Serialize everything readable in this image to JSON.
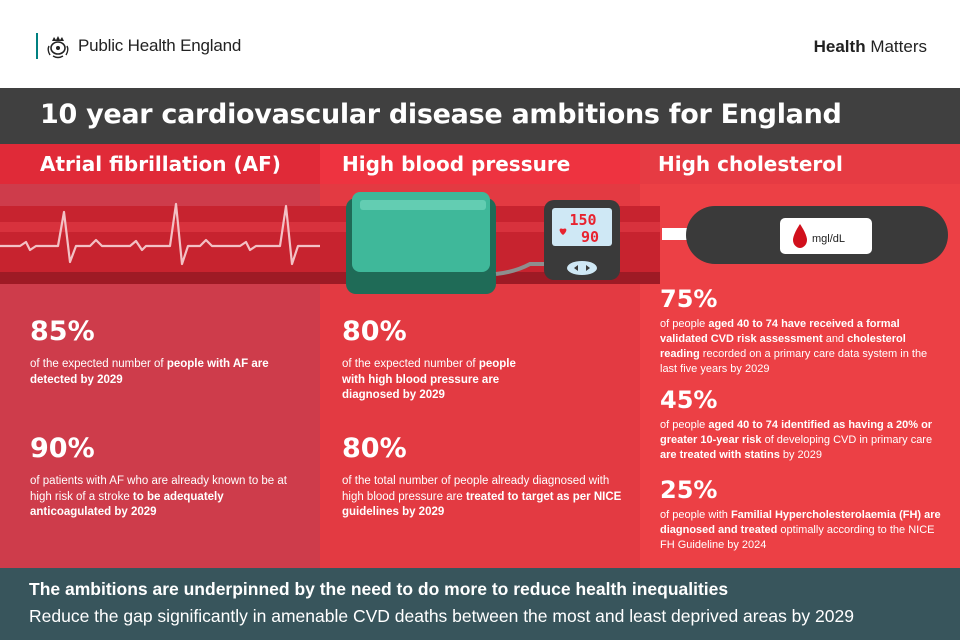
{
  "header": {
    "org": "Public Health England",
    "brand_bold": "Health",
    "brand_rest": " Matters"
  },
  "title": "10 year cardiovascular disease ambitions for England",
  "columns": [
    {
      "heading": "Atrial fibrillation (AF)",
      "stats": [
        {
          "pct": "85%",
          "desc_pre": "of the expected number of ",
          "desc_bold": "people with AF are detected by 2029",
          "desc_post": ""
        },
        {
          "pct": "90%",
          "desc_pre": "of patients with AF who are already known to be at high risk of a stroke ",
          "desc_bold": "to be adequately anticoagulated by 2029",
          "desc_post": ""
        }
      ]
    },
    {
      "heading": "High blood pressure",
      "monitor": {
        "top": "150",
        "bottom": "90"
      },
      "stats": [
        {
          "pct": "80%",
          "desc_pre": "of the expected number of ",
          "desc_bold": "people with high blood pressure are diagnosed by 2029",
          "desc_post": ""
        },
        {
          "pct": "80%",
          "desc_pre": "of the total number of people already diagnosed with high blood pressure are ",
          "desc_bold": "treated to target as per NICE guidelines by 2029",
          "desc_post": ""
        }
      ]
    },
    {
      "heading": "High cholesterol",
      "meter_unit": "mgl/dL",
      "stats": [
        {
          "pct": "75%",
          "desc_pre": "of people ",
          "desc_bold": "aged 40 to 74 have received a formal validated CVD risk assessment",
          "desc_mid": " and ",
          "desc_bold2": "cholesterol reading",
          "desc_post": " recorded on a primary care data system in the last five years by 2029"
        },
        {
          "pct": "45%",
          "desc_pre": "of people ",
          "desc_bold": "aged 40 to 74 identified as having a 20% or greater 10-year risk",
          "desc_mid": " of developing CVD in primary care ",
          "desc_bold2": "are treated with statins",
          "desc_post": " by 2029"
        },
        {
          "pct": "25%",
          "desc_pre": "of people with ",
          "desc_bold": "Familial Hypercholesterolaemia (FH) are diagnosed and treated",
          "desc_mid": " optimally according to the NICE FH Guideline by 2024",
          "desc_bold2": "",
          "desc_post": ""
        }
      ]
    }
  ],
  "footer": {
    "line1": "The ambitions are underpinned by the need to do more to reduce health inequalities",
    "line2": "Reduce the gap significantly in amenable CVD deaths between the most and least deprived areas by 2029"
  },
  "colors": {
    "title_band": "#404040",
    "footer": "#38555c",
    "cuff": "#3fb89a",
    "monitor_screen": "#cfe8f5",
    "monitor_digits": "#e8232f"
  },
  "icons": [
    "crown-crest-icon",
    "ecg-wave-icon",
    "blood-pressure-cuff-icon",
    "bp-monitor-icon",
    "blood-drop-icon",
    "glucose-meter-icon"
  ]
}
